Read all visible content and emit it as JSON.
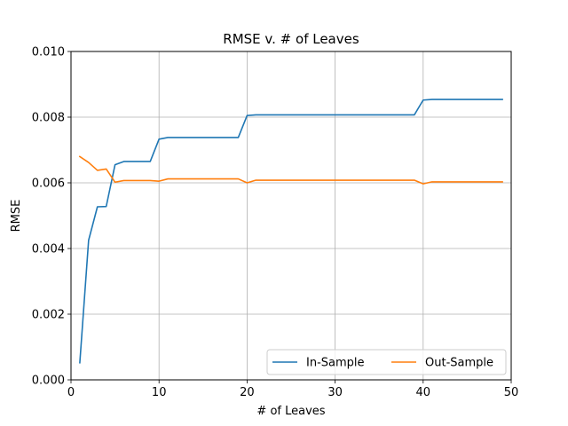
{
  "chart_data": {
    "type": "line",
    "title": "RMSE v. # of Leaves",
    "xlabel": "# of Leaves",
    "ylabel": "RMSE",
    "xlim": [
      0,
      50
    ],
    "ylim": [
      0,
      0.01
    ],
    "xticks": [
      "0",
      "10",
      "20",
      "30",
      "40",
      "50"
    ],
    "xtick_values": [
      0,
      10,
      20,
      30,
      40,
      50
    ],
    "yticks": [
      "0.000",
      "0.002",
      "0.004",
      "0.006",
      "0.008",
      "0.010"
    ],
    "ytick_values": [
      0,
      0.002,
      0.004,
      0.006,
      0.008,
      0.01
    ],
    "grid": true,
    "legend": {
      "placement": "lower-right",
      "columns": 2
    },
    "x": [
      1,
      2,
      3,
      4,
      5,
      6,
      7,
      8,
      9,
      10,
      11,
      12,
      13,
      14,
      15,
      16,
      17,
      18,
      19,
      20,
      21,
      22,
      23,
      24,
      25,
      26,
      27,
      28,
      29,
      30,
      31,
      32,
      33,
      34,
      35,
      36,
      37,
      38,
      39,
      40,
      41,
      42,
      43,
      44,
      45,
      46,
      47,
      48,
      49
    ],
    "series": [
      {
        "name": "In-Sample",
        "color": "#1f77b4",
        "values": [
          0.00052,
          0.00425,
          0.00527,
          0.00528,
          0.00655,
          0.00665,
          0.00665,
          0.00665,
          0.00665,
          0.00733,
          0.00738,
          0.00738,
          0.00738,
          0.00738,
          0.00738,
          0.00738,
          0.00738,
          0.00738,
          0.00738,
          0.00805,
          0.00807,
          0.00807,
          0.00807,
          0.00807,
          0.00807,
          0.00807,
          0.00807,
          0.00807,
          0.00807,
          0.00807,
          0.00807,
          0.00807,
          0.00807,
          0.00807,
          0.00807,
          0.00807,
          0.00807,
          0.00807,
          0.00807,
          0.00852,
          0.00854,
          0.00854,
          0.00854,
          0.00854,
          0.00854,
          0.00854,
          0.00854,
          0.00854,
          0.00854
        ]
      },
      {
        "name": "Out-Sample",
        "color": "#ff7f0e",
        "values": [
          0.0068,
          0.00662,
          0.00638,
          0.00642,
          0.00602,
          0.00607,
          0.00607,
          0.00607,
          0.00607,
          0.00605,
          0.00612,
          0.00612,
          0.00612,
          0.00612,
          0.00612,
          0.00612,
          0.00612,
          0.00612,
          0.00612,
          0.006,
          0.00608,
          0.00608,
          0.00608,
          0.00608,
          0.00608,
          0.00608,
          0.00608,
          0.00608,
          0.00608,
          0.00608,
          0.00608,
          0.00608,
          0.00608,
          0.00608,
          0.00608,
          0.00608,
          0.00608,
          0.00608,
          0.00608,
          0.00597,
          0.00603,
          0.00603,
          0.00603,
          0.00603,
          0.00603,
          0.00603,
          0.00603,
          0.00603,
          0.00603
        ]
      }
    ]
  }
}
